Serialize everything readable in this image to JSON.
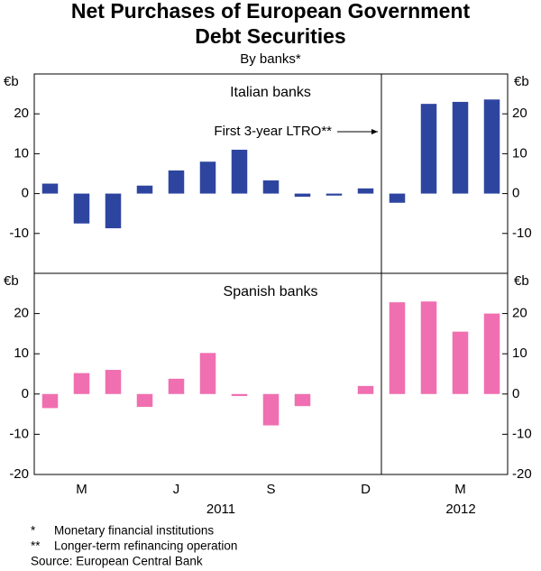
{
  "chart_data": {
    "type": "bar",
    "title": [
      "Net Purchases of European Government",
      "Debt Securities"
    ],
    "subtitle": "By banks*",
    "y_unit": "€b",
    "categories": [
      null,
      "M",
      null,
      null,
      "J",
      null,
      null,
      "S",
      null,
      null,
      "D",
      null,
      null,
      "M",
      null
    ],
    "years": [
      "2011",
      "2012"
    ],
    "ylim": [
      -20,
      30
    ],
    "annotation": "First 3-year LTRO**",
    "series": [
      {
        "name": "Italian banks",
        "color": "#2e45a0",
        "values": [
          2.5,
          -7.5,
          -8.7,
          2,
          5.8,
          8,
          11,
          3.3,
          -0.8,
          -0.5,
          1.3,
          -2.3,
          22.5,
          23,
          23.6
        ],
        "yticks": [
          -10,
          0,
          10,
          20
        ]
      },
      {
        "name": "Spanish banks",
        "color": "#f06fb0",
        "values": [
          -3.5,
          5.2,
          6,
          -3.2,
          3.8,
          10.2,
          -0.5,
          -7.8,
          -3,
          0,
          2,
          22.8,
          23,
          15.5,
          20
        ],
        "yticks": [
          -20,
          -10,
          0,
          10,
          20
        ]
      }
    ]
  },
  "notes": [
    {
      "symbol": "*",
      "text": "Monetary financial institutions"
    },
    {
      "symbol": "**",
      "text": "Longer-term refinancing operation"
    }
  ],
  "source": "Source: European Central Bank"
}
